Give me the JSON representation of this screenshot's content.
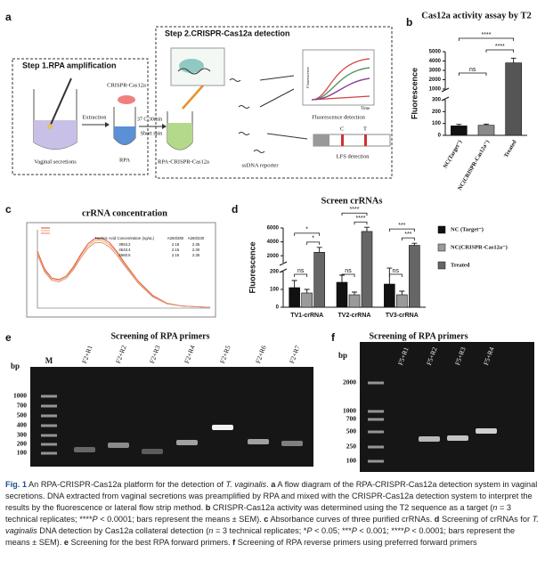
{
  "panel_labels": [
    "a",
    "b",
    "c",
    "d",
    "e",
    "f"
  ],
  "diagram": {
    "step1": "Step 1.RPA amplification",
    "step2": "Step 2.CRISPR-Cas12a detection",
    "vaginal": "Vaginal secretions",
    "extraction": "Extraction",
    "rpa": "RPA",
    "cas12a": "CRISPR-Cas12a",
    "condition": "37 C,30min",
    "spin": "Short spin",
    "mix": "RPA-CRISPR-Cas12a",
    "fluor_axis": "Fluorescence",
    "time_axis": "Time",
    "fluor_detect": "Fluorescence detection",
    "reporter": "ssDNA reporter",
    "lfs": "LFS detection",
    "c_line": "C",
    "t_line": "T"
  },
  "chart_data": [
    {
      "type": "bar",
      "title": "Cas12a activity assay by T2",
      "y_label": "Fluorescence",
      "categories": [
        "NC(Target⁻)",
        "NC(CRISPR-Cas12a⁻)",
        "Treated"
      ],
      "values": [
        80,
        85,
        3800
      ],
      "errors": [
        12,
        10,
        500
      ],
      "colors": [
        "#111111",
        "#8a8a8a",
        "#555555"
      ],
      "ylim": [
        0,
        5000
      ],
      "y_break": [
        300,
        1000
      ],
      "yticks": [
        0,
        100,
        200,
        300,
        1000,
        2000,
        3000,
        4000,
        5000
      ],
      "annotations": [
        "ns",
        "****",
        "****"
      ]
    },
    {
      "type": "line",
      "title": "crRNA concentration",
      "x": [
        220,
        225,
        230,
        235,
        240,
        245,
        250,
        255,
        260,
        265,
        270,
        275,
        280,
        290,
        300,
        310,
        320,
        330,
        340
      ],
      "series": [
        {
          "color": "#d94040",
          "values": [
            0.8,
            0.55,
            0.42,
            0.4,
            0.45,
            0.58,
            0.75,
            0.9,
            0.98,
            0.98,
            0.92,
            0.8,
            0.65,
            0.38,
            0.18,
            0.07,
            0.03,
            0.02,
            0.01
          ]
        },
        {
          "color": "#e8b040",
          "values": [
            0.78,
            0.53,
            0.41,
            0.39,
            0.44,
            0.56,
            0.73,
            0.87,
            0.95,
            0.95,
            0.89,
            0.78,
            0.63,
            0.37,
            0.17,
            0.07,
            0.03,
            0.02,
            0.01
          ]
        },
        {
          "color": "#e08080",
          "values": [
            0.75,
            0.51,
            0.39,
            0.37,
            0.42,
            0.54,
            0.7,
            0.84,
            0.92,
            0.92,
            0.86,
            0.75,
            0.61,
            0.35,
            0.16,
            0.06,
            0.03,
            0.02,
            0.01
          ]
        }
      ],
      "xlim": [
        220,
        340
      ],
      "ylim": [
        0,
        1.1
      ],
      "table": {
        "header": [
          "Nucleic Acid Concentration (ng/uL)",
          "A260/280",
          "A260/230"
        ],
        "rows": [
          [
            "3953.2",
            "2.18",
            "2.35"
          ],
          [
            "4543.4",
            "2.15",
            "2.30"
          ],
          [
            "4560.5",
            "2.16",
            "2.35"
          ]
        ]
      }
    },
    {
      "type": "grouped_bar",
      "title": "Screen crRNAs",
      "y_label": "Fluorescence",
      "categories": [
        "TV1-crRNA",
        "TV2-crRNA",
        "TV3-crRNA"
      ],
      "series": [
        {
          "name": "NC (Target⁻)",
          "color": "#111111",
          "values": [
            110,
            140,
            130
          ],
          "errors": [
            40,
            40,
            90
          ]
        },
        {
          "name": "NC(CRISPR-Cas12a⁻)",
          "color": "#9a9a9a",
          "values": [
            80,
            70,
            70
          ],
          "errors": [
            20,
            15,
            20
          ]
        },
        {
          "name": "Treated",
          "color": "#666666",
          "values": [
            2500,
            5500,
            3500
          ],
          "errors": [
            700,
            600,
            300
          ]
        }
      ],
      "ylim": [
        0,
        6000
      ],
      "y_break": [
        200,
        1000
      ],
      "yticks": [
        0,
        100,
        200,
        2000,
        4000,
        6000
      ],
      "annotations": [
        [
          "ns",
          "*",
          "*"
        ],
        [
          "ns",
          "****",
          "****"
        ],
        [
          "ns",
          "***",
          "***"
        ]
      ]
    }
  ],
  "gels": [
    {
      "title": "Screening of RPA primers",
      "unit": "bp",
      "ladder_label": "M",
      "lanes": [
        "F2+R1",
        "F2+R2",
        "F2+R3",
        "F2+R4",
        "F2+R5",
        "F2+R6",
        "F2+R7"
      ],
      "ladder": [
        "1000",
        "700",
        "500",
        "400",
        "300",
        "200",
        "100"
      ]
    },
    {
      "title": "Screening of RPA primers",
      "unit": "bp",
      "lanes": [
        "F5+R1",
        "F5+R2",
        "F5+R3",
        "F5+R4"
      ],
      "ladder": [
        "2000",
        "1000",
        "700",
        "500",
        "250",
        "100"
      ]
    }
  ],
  "caption": [
    "Fig. 1",
    "  An RPA-CRISPR-Cas12a platform for the detection of ",
    "T. vaginalis",
    ". ",
    "a",
    " A flow diagram of the RPA-CRISPR-Cas12a detection system in vaginal secretions. DNA extracted from vaginal secretions was preamplified by RPA and mixed with the CRISPR-Cas12a detection system to interpret the results by the fluorescence or lateral flow strip method. ",
    "b",
    " CRISPR-Cas12a activity was determined using the T2 sequence as a target (",
    "n",
    " = 3 technical replicates; ****",
    "P",
    " < 0.0001; bars represent the means ± SEM). ",
    "c",
    " Absorbance curves of three purified crRNAs. ",
    "d",
    " Screening of crRNAs for ",
    "T. vaginalis",
    " DNA detection by Cas12a collateral detection (",
    "n",
    " = 3 technical replicates; *",
    "P",
    " < 0.05; ***",
    "P",
    " < 0.001; ****",
    "P",
    " < 0.0001; bars represent the means ± SEM). ",
    "e",
    " Screening for the best RPA forward primers. ",
    "f",
    " Screening of RPA reverse primers using preferred forward primers"
  ]
}
